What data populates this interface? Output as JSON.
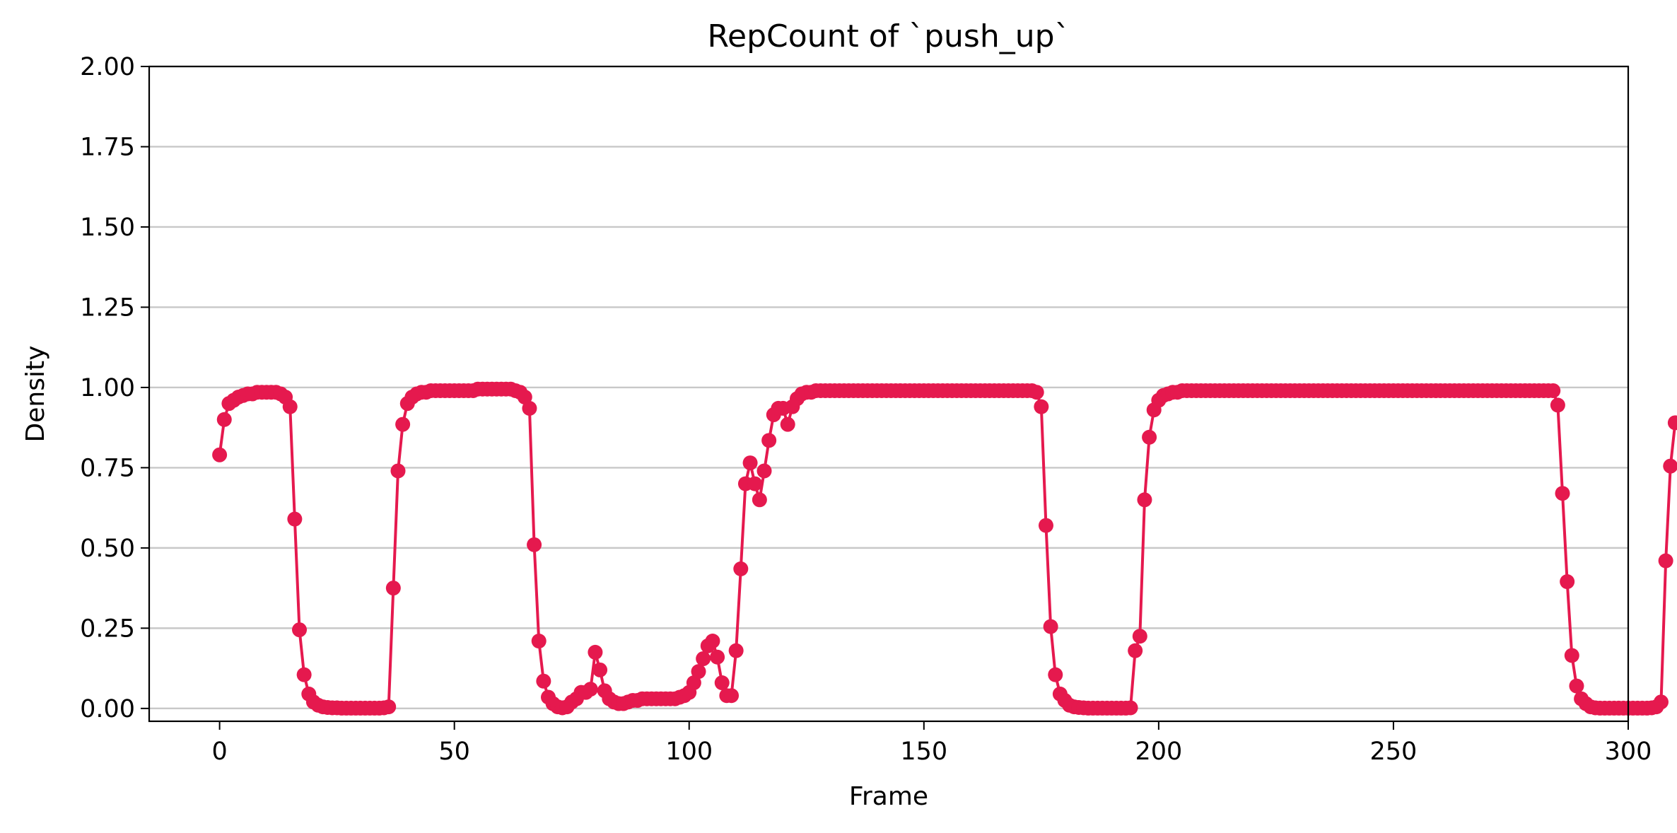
{
  "colors": {
    "series": "#e5194e",
    "grid": "#c8c8c8",
    "axis": "#000000",
    "background": "#ffffff"
  },
  "chart_data": {
    "type": "line",
    "title": "RepCount of `push_up`",
    "xlabel": "Frame",
    "ylabel": "Density",
    "xlim": [
      -15,
      300
    ],
    "ylim": [
      -0.04,
      2.0
    ],
    "grid": "horizontal",
    "marker": "circle",
    "x_ticks": [
      0,
      50,
      100,
      150,
      200,
      250,
      300
    ],
    "x_tick_labels": [
      "0",
      "50",
      "100",
      "150",
      "200",
      "250",
      "300"
    ],
    "y_ticks": [
      0,
      0.25,
      0.5,
      0.75,
      1.0,
      1.25,
      1.5,
      1.75,
      2.0
    ],
    "y_tick_labels": [
      "0.00",
      "0.25",
      "0.50",
      "0.75",
      "1.00",
      "1.25",
      "1.50",
      "1.75",
      "2.00"
    ],
    "series": [
      {
        "color": "#e5194e",
        "x_start": 0,
        "x_step": 1,
        "values": [
          0.79,
          0.9,
          0.95,
          0.96,
          0.97,
          0.975,
          0.98,
          0.98,
          0.985,
          0.985,
          0.985,
          0.985,
          0.985,
          0.98,
          0.97,
          0.94,
          0.59,
          0.245,
          0.105,
          0.045,
          0.02,
          0.01,
          0.005,
          0.003,
          0.002,
          0.002,
          0.001,
          0.001,
          0.001,
          0.001,
          0.001,
          0.001,
          0.001,
          0.001,
          0.001,
          0.002,
          0.005,
          0.375,
          0.74,
          0.885,
          0.95,
          0.97,
          0.98,
          0.985,
          0.985,
          0.99,
          0.99,
          0.99,
          0.99,
          0.99,
          0.99,
          0.99,
          0.99,
          0.99,
          0.99,
          0.995,
          0.995,
          0.995,
          0.995,
          0.995,
          0.995,
          0.995,
          0.995,
          0.99,
          0.985,
          0.97,
          0.935,
          0.51,
          0.21,
          0.085,
          0.035,
          0.015,
          0.005,
          0.002,
          0.005,
          0.02,
          0.03,
          0.05,
          0.05,
          0.06,
          0.175,
          0.12,
          0.055,
          0.03,
          0.02,
          0.015,
          0.015,
          0.02,
          0.025,
          0.025,
          0.03,
          0.03,
          0.03,
          0.03,
          0.03,
          0.03,
          0.03,
          0.03,
          0.035,
          0.04,
          0.05,
          0.08,
          0.115,
          0.155,
          0.195,
          0.21,
          0.16,
          0.08,
          0.04,
          0.04,
          0.18,
          0.435,
          0.7,
          0.765,
          0.7,
          0.65,
          0.74,
          0.835,
          0.915,
          0.935,
          0.935,
          0.885,
          0.94,
          0.965,
          0.98,
          0.985,
          0.985,
          0.99,
          0.99,
          0.99,
          0.99,
          0.99,
          0.99,
          0.99,
          0.99,
          0.99,
          0.99,
          0.99,
          0.99,
          0.99,
          0.99,
          0.99,
          0.99,
          0.99,
          0.99,
          0.99,
          0.99,
          0.99,
          0.99,
          0.99,
          0.99,
          0.99,
          0.99,
          0.99,
          0.99,
          0.99,
          0.99,
          0.99,
          0.99,
          0.99,
          0.99,
          0.99,
          0.99,
          0.99,
          0.99,
          0.99,
          0.99,
          0.99,
          0.99,
          0.99,
          0.99,
          0.99,
          0.99,
          0.99,
          0.985,
          0.94,
          0.57,
          0.255,
          0.105,
          0.045,
          0.025,
          0.01,
          0.005,
          0.003,
          0.002,
          0.001,
          0.001,
          0.001,
          0.001,
          0.001,
          0.001,
          0.001,
          0.001,
          0.001,
          0.002,
          0.18,
          0.225,
          0.65,
          0.845,
          0.93,
          0.96,
          0.975,
          0.98,
          0.985,
          0.985,
          0.99,
          0.99,
          0.99,
          0.99,
          0.99,
          0.99,
          0.99,
          0.99,
          0.99,
          0.99,
          0.99,
          0.99,
          0.99,
          0.99,
          0.99,
          0.99,
          0.99,
          0.99,
          0.99,
          0.99,
          0.99,
          0.99,
          0.99,
          0.99,
          0.99,
          0.99,
          0.99,
          0.99,
          0.99,
          0.99,
          0.99,
          0.99,
          0.99,
          0.99,
          0.99,
          0.99,
          0.99,
          0.99,
          0.99,
          0.99,
          0.99,
          0.99,
          0.99,
          0.99,
          0.99,
          0.99,
          0.99,
          0.99,
          0.99,
          0.99,
          0.99,
          0.99,
          0.99,
          0.99,
          0.99,
          0.99,
          0.99,
          0.99,
          0.99,
          0.99,
          0.99,
          0.99,
          0.99,
          0.99,
          0.99,
          0.99,
          0.99,
          0.99,
          0.99,
          0.99,
          0.99,
          0.99,
          0.99,
          0.99,
          0.99,
          0.99,
          0.99,
          0.99,
          0.99,
          0.99,
          0.945,
          0.67,
          0.395,
          0.165,
          0.07,
          0.03,
          0.015,
          0.005,
          0.002,
          0.001,
          0.001,
          0.001,
          0.001,
          0.001,
          0.001,
          0.001,
          0.001,
          0.001,
          0.001,
          0.001,
          0.002,
          0.005,
          0.02,
          0.46,
          0.755,
          0.89
        ]
      }
    ]
  }
}
